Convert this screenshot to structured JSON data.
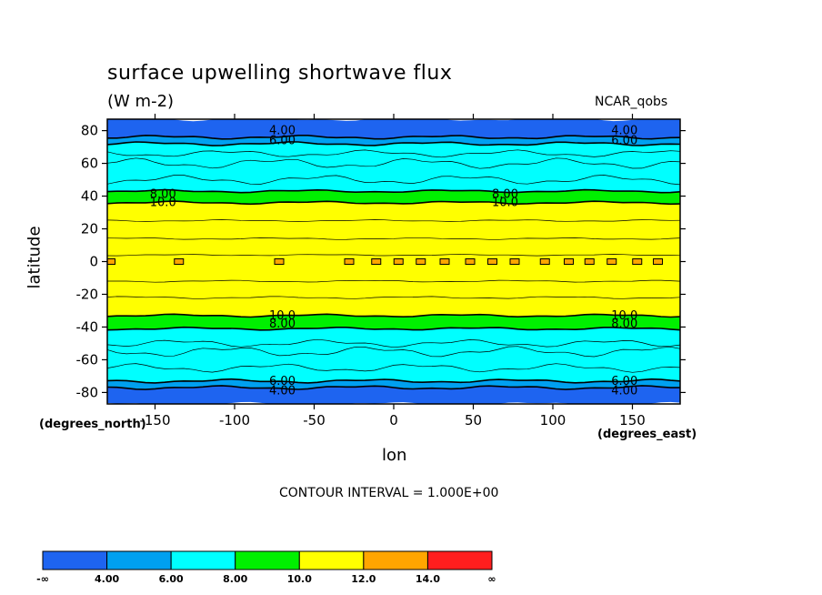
{
  "chart_data": {
    "type": "heatmap",
    "title": "surface upwelling shortwave flux",
    "units": "(W m-2)",
    "source": "NCAR_qobs",
    "xlabel": "lon",
    "ylabel": "latitude",
    "x_units": "(degrees_east)",
    "y_units": "(degrees_north)",
    "xlim": [
      -180,
      180
    ],
    "ylim": [
      -87,
      87
    ],
    "x_ticks": [
      -150,
      -100,
      -50,
      0,
      50,
      100,
      150
    ],
    "x_tick_labels": [
      "-150",
      "-100",
      "-50",
      "0",
      "50",
      "100",
      "150"
    ],
    "y_ticks": [
      -80,
      -60,
      -40,
      -20,
      0,
      20,
      40,
      60,
      80
    ],
    "y_tick_labels": [
      "-80",
      "-60",
      "-40",
      "-20",
      "0",
      "20",
      "40",
      "60",
      "80"
    ],
    "contour_interval_text": "CONTOUR INTERVAL = 1.000E+00",
    "levels": [
      4,
      6,
      8,
      10,
      12,
      14
    ],
    "colorbar": {
      "bins": [
        {
          "color": "#1E64F0",
          "label": "-∞"
        },
        {
          "color": "#00A0F0",
          "label": "4.00"
        },
        {
          "color": "#00FFFF",
          "label": "6.00"
        },
        {
          "color": "#00F000",
          "label": "8.00"
        },
        {
          "color": "#FFFF00",
          "label": "10.0"
        },
        {
          "color": "#FFA500",
          "label": "12.0"
        },
        {
          "color": "#FF1E1E",
          "label": "14.0"
        }
      ],
      "end_label": "∞"
    },
    "zonal_bands": [
      {
        "lat_from": 76,
        "lat_to": 87,
        "value_range": "<4.00",
        "color": "#1E64F0"
      },
      {
        "lat_from": 72,
        "lat_to": 76,
        "value_range": "4.00-6.00",
        "color": "#00A0F0"
      },
      {
        "lat_from": 43,
        "lat_to": 72,
        "value_range": "6.00-8.00",
        "color": "#00FFFF"
      },
      {
        "lat_from": 36,
        "lat_to": 43,
        "value_range": "8.00-10.0",
        "color": "#00F000"
      },
      {
        "lat_from": -33,
        "lat_to": 36,
        "value_range": "10.0-12.0",
        "color": "#FFFF00"
      },
      {
        "lat_from": -41,
        "lat_to": -33,
        "value_range": "8.00-10.0",
        "color": "#00F000"
      },
      {
        "lat_from": -73,
        "lat_to": -41,
        "value_range": "6.00-8.00",
        "color": "#00FFFF"
      },
      {
        "lat_from": -77,
        "lat_to": -73,
        "value_range": "4.00-6.00",
        "color": "#00A0F0"
      },
      {
        "lat_from": -87,
        "lat_to": -77,
        "value_range": "<4.00",
        "color": "#1E64F0"
      }
    ],
    "equatorial_cells_lon": [
      -178,
      -135,
      -72,
      -28,
      -11,
      3,
      17,
      32,
      48,
      62,
      76,
      95,
      110,
      123,
      137,
      153,
      166
    ],
    "contour_labels": [
      {
        "text": "4.00",
        "lon": -70,
        "lat": 80
      },
      {
        "text": "6.00",
        "lon": -70,
        "lat": 74
      },
      {
        "text": "4.00",
        "lon": 145,
        "lat": 80
      },
      {
        "text": "6.00",
        "lon": 145,
        "lat": 74
      },
      {
        "text": "8.00",
        "lon": -145,
        "lat": 41
      },
      {
        "text": "10.0",
        "lon": -145,
        "lat": 36
      },
      {
        "text": "8.00",
        "lon": 70,
        "lat": 41
      },
      {
        "text": "10.0",
        "lon": 70,
        "lat": 36
      },
      {
        "text": "10.0",
        "lon": -70,
        "lat": -33
      },
      {
        "text": "8.00",
        "lon": -70,
        "lat": -38
      },
      {
        "text": "10.0",
        "lon": 145,
        "lat": -33
      },
      {
        "text": "8.00",
        "lon": 145,
        "lat": -38
      },
      {
        "text": "6.00",
        "lon": -70,
        "lat": -73
      },
      {
        "text": "4.00",
        "lon": -70,
        "lat": -79
      },
      {
        "text": "6.00",
        "lon": 145,
        "lat": -73
      },
      {
        "text": "4.00",
        "lon": 145,
        "lat": -79
      }
    ]
  }
}
